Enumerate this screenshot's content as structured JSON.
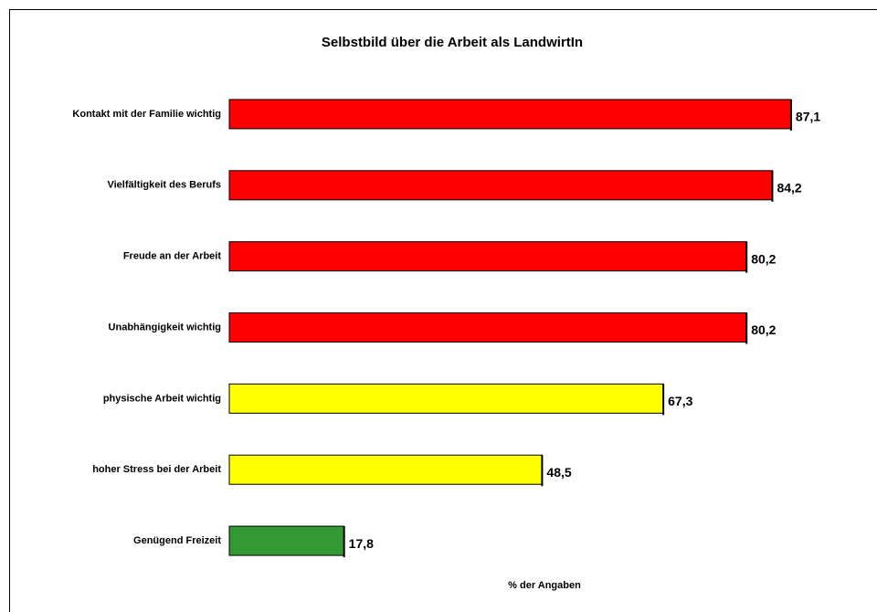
{
  "chart_data": {
    "type": "barh",
    "title": "Selbstbild über die Arbeit als LandwirtIn",
    "x_label": "% der Angaben",
    "categories": [
      "Kontakt mit der Familie wichtig",
      "Vielfältigkeit des Berufs",
      "Freude an der Arbeit",
      "Unabhängigkeit wichtig",
      "physische Arbeit wichtig",
      "hoher Stress bei der Arbeit",
      "Genügend Freizeit"
    ],
    "values": [
      87.1,
      84.2,
      80.2,
      80.2,
      67.3,
      48.5,
      17.8
    ],
    "value_labels": [
      "87,1",
      "84,2",
      "80,2",
      "80,2",
      "67,3",
      "48,5",
      "17,8"
    ],
    "colors": [
      "#ff0000",
      "#ff0000",
      "#ff0000",
      "#ff0000",
      "#ffff00",
      "#ffff00",
      "#339933"
    ],
    "xlim": [
      0,
      100
    ]
  }
}
